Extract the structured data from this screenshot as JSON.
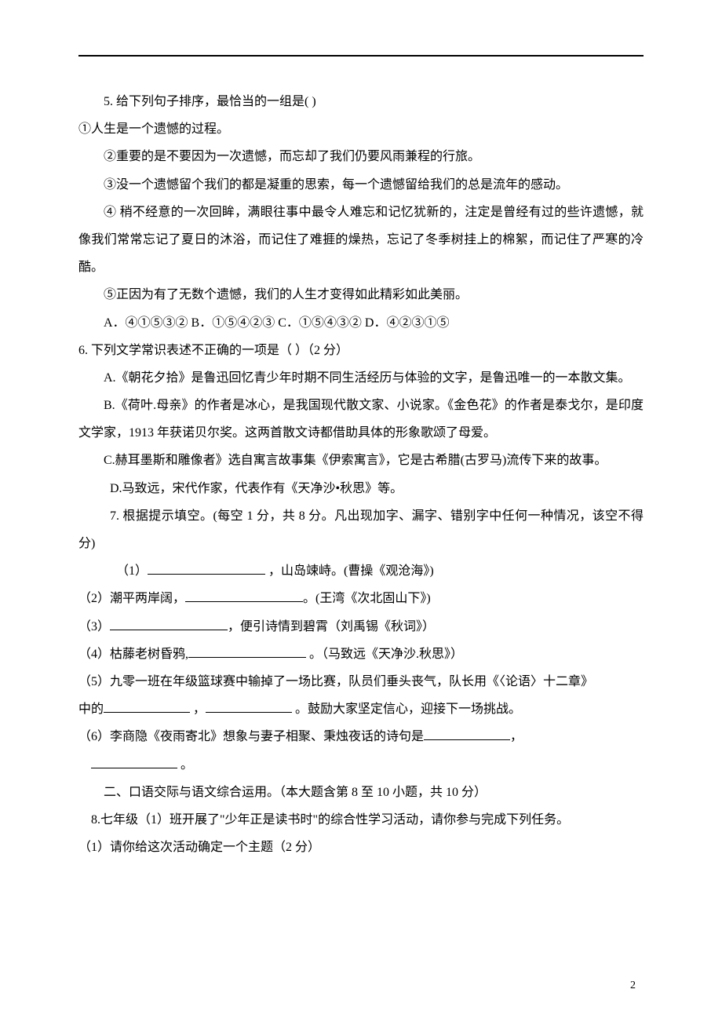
{
  "q5": {
    "stem": "5. 给下列句子排序，最恰当的一组是(       )",
    "line1": "①人生是一个遗憾的过程。",
    "line2": "②重要的是不要因为一次遗憾，而忘却了我们仍要风雨兼程的行旅。",
    "line3": "③没一个遗憾留个我们的都是凝重的思索，每一个遗憾留给我们的总是流年的感动。",
    "line4": "④ 稍不经意的一次回眸，满眼往事中最令人难忘和记忆犹新的，注定是曾经有过的些许遗憾，就像我们常常忘记了夏日的沐浴，而记住了难捱的燥热，忘记了冬季树挂上的棉絮，而记住了严寒的冷酷。",
    "line5": "⑤正因为有了无数个遗憾，我们的人生才变得如此精彩如此美丽。",
    "options": "A．④①⑤③②  B．①⑤④②③  C．①⑤④③②    D．④②③①⑤"
  },
  "q6": {
    "stem": "6. 下列文学常识表述不正确的一项是（    ）（2 分）",
    "a": "A.《朝花夕拾》是鲁迅回忆青少年时期不同生活经历与体验的文字，是鲁迅唯一的一本散文集。",
    "b": "B.《荷叶.母亲》的作者是冰心，是我国现代散文家、小说家。《金色花》的作者是泰戈尔，是印度文学家，1913 年获诺贝尔奖。这两首散文诗都借助具体的形象歌颂了母爱。",
    "c": "C.赫耳墨斯和雕像者》选自寓言故事集《伊索寓言》，它是古希腊(古罗马)流传下来的故事。",
    "d": "D.马致远，宋代作家，代表作有《天净沙•秋思》等。"
  },
  "q7": {
    "stem": "7. 根据提示填空。(每空 1 分，共 8 分。凡出现加字、漏字、错别字中任何一种情况，该空不得分)",
    "item1_suffix": " ，山岛竦峙。(曹操《观沧海》)",
    "item1_prefix": "（1）",
    "item2_prefix": "（2）潮平两岸阔，",
    "item2_suffix": "。(王湾《次北固山下》)",
    "item3_prefix": "（3）",
    "item3_suffix": "，便引诗情到碧霄（刘禹锡《秋词》）",
    "item4_prefix": "（4）枯藤老树昏鸦,",
    "item4_suffix": " 。（马致远《天净沙.秋思》）",
    "item5_prefix": "（5）九零一班在年级篮球赛中输掉了一场比赛，队员们垂头丧气，队长用《〈论语〉十二章》",
    "item5_mid": "中的",
    "item5_sep": " ，",
    "item5_suffix": " 。鼓励大家坚定信心，迎接下一场挑战。",
    "item6_prefix": "（6）李商隐《夜雨寄北》想象与妻子相聚、秉烛夜话的诗句是",
    "item6_sep": "，",
    "item6_suffix": " 。"
  },
  "section2": "二、口语交际与语文综合运用。（本大题含第 8 至 10 小题，共 10 分）",
  "q8": {
    "stem": "8.七年级（1）班开展了\"少年正是读书时\"的综合性学习活动，请你参与完成下列任务。",
    "sub1": "（1）请你给这次活动确定一个主题（2 分）"
  },
  "page_number": "2"
}
